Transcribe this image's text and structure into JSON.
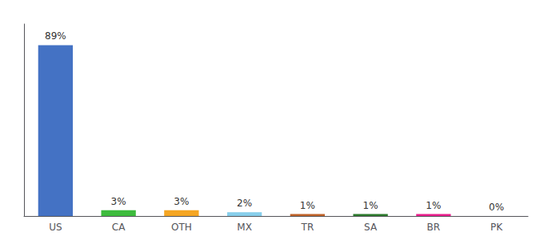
{
  "chart_data": {
    "type": "bar",
    "categories": [
      "US",
      "CA",
      "OTH",
      "MX",
      "TR",
      "SA",
      "BR",
      "PK"
    ],
    "values": [
      89,
      3,
      3,
      2,
      1,
      1,
      1,
      0
    ],
    "value_labels": [
      "89%",
      "3%",
      "3%",
      "2%",
      "1%",
      "1%",
      "1%",
      "0%"
    ],
    "colors": [
      "#4472c4",
      "#3dbb3d",
      "#f5a623",
      "#87ceeb",
      "#c0632a",
      "#2d7a2d",
      "#e91e8c",
      "#cccccc"
    ],
    "ylim": [
      0,
      100
    ],
    "grid": false,
    "tick_labels": "x",
    "data_labels": true
  }
}
